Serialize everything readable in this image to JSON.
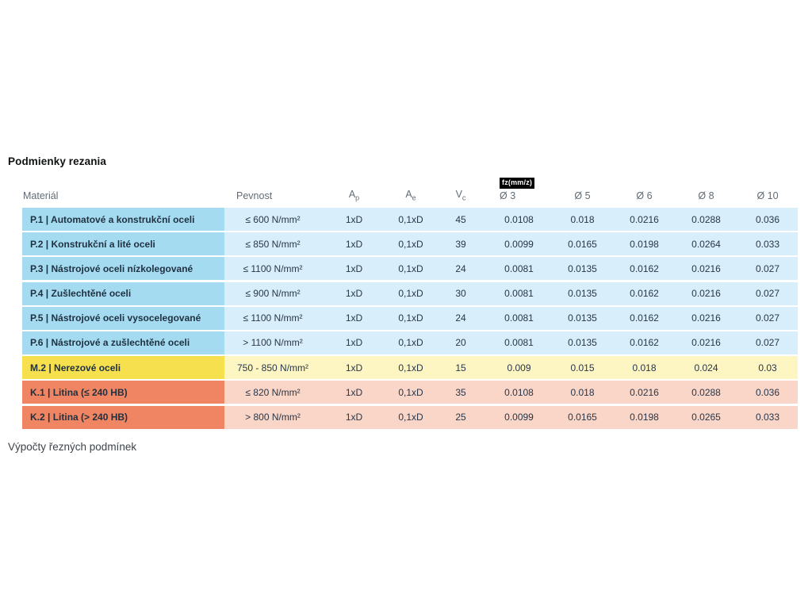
{
  "page": {
    "title": "Podmienky rezania",
    "footer": "Výpočty řezných podmínek"
  },
  "table": {
    "fz_badge": "fz(mm/z)",
    "headers": {
      "material": "Materiál",
      "pevnost": "Pevnost",
      "ap_base": "A",
      "ap_sub": "p",
      "ae_base": "A",
      "ae_sub": "e",
      "vc_base": "V",
      "vc_sub": "c",
      "d3": "Ø 3",
      "d5": "Ø 5",
      "d6": "Ø 6",
      "d8": "Ø 8",
      "d10": "Ø 10"
    },
    "colors": {
      "steel_dark": "#a4dbf1",
      "steel_light": "#d8eefa",
      "stainless_dark": "#f6e04e",
      "stainless_light": "#fdf5c2",
      "castiron_dark": "#ef8562",
      "castiron_light": "#f9d6c7"
    },
    "rows": [
      {
        "category": "steel",
        "material": "P.1 | Automatové a konstrukční oceli",
        "pevnost": "≤ 600 N/mm²",
        "ap": "1xD",
        "ae": "0,1xD",
        "vc": "45",
        "fz": [
          "0.0108",
          "0.018",
          "0.0216",
          "0.0288",
          "0.036"
        ]
      },
      {
        "category": "steel",
        "material": "P.2 | Konstrukční a lité oceli",
        "pevnost": "≤ 850 N/mm²",
        "ap": "1xD",
        "ae": "0,1xD",
        "vc": "39",
        "fz": [
          "0.0099",
          "0.0165",
          "0.0198",
          "0.0264",
          "0.033"
        ]
      },
      {
        "category": "steel",
        "material": "P.3 | Nástrojové oceli nízkolegované",
        "pevnost": "≤ 1100 N/mm²",
        "ap": "1xD",
        "ae": "0,1xD",
        "vc": "24",
        "fz": [
          "0.0081",
          "0.0135",
          "0.0162",
          "0.0216",
          "0.027"
        ]
      },
      {
        "category": "steel",
        "material": "P.4 | Zušlechtěné oceli",
        "pevnost": "≤ 900 N/mm²",
        "ap": "1xD",
        "ae": "0,1xD",
        "vc": "30",
        "fz": [
          "0.0081",
          "0.0135",
          "0.0162",
          "0.0216",
          "0.027"
        ]
      },
      {
        "category": "steel",
        "material": "P.5 | Nástrojové oceli vysocelegované",
        "pevnost": "≤ 1100 N/mm²",
        "ap": "1xD",
        "ae": "0,1xD",
        "vc": "24",
        "fz": [
          "0.0081",
          "0.0135",
          "0.0162",
          "0.0216",
          "0.027"
        ]
      },
      {
        "category": "steel",
        "material": "P.6 | Nástrojové a zušlechtěné oceli",
        "pevnost": "> 1100 N/mm²",
        "ap": "1xD",
        "ae": "0,1xD",
        "vc": "20",
        "fz": [
          "0.0081",
          "0.0135",
          "0.0162",
          "0.0216",
          "0.027"
        ]
      },
      {
        "category": "stainless",
        "material": "M.2 | Nerezové oceli",
        "pevnost": "750 - 850 N/mm²",
        "ap": "1xD",
        "ae": "0,1xD",
        "vc": "15",
        "fz": [
          "0.009",
          "0.015",
          "0.018",
          "0.024",
          "0.03"
        ]
      },
      {
        "category": "castiron",
        "material": "K.1 | Litina (≤ 240 HB)",
        "pevnost": "≤ 820 N/mm²",
        "ap": "1xD",
        "ae": "0,1xD",
        "vc": "35",
        "fz": [
          "0.0108",
          "0.018",
          "0.0216",
          "0.0288",
          "0.036"
        ]
      },
      {
        "category": "castiron",
        "material": "K.2 | Litina (> 240 HB)",
        "pevnost": "> 800 N/mm²",
        "ap": "1xD",
        "ae": "0,1xD",
        "vc": "25",
        "fz": [
          "0.0099",
          "0.0165",
          "0.0198",
          "0.0265",
          "0.033"
        ]
      }
    ]
  }
}
